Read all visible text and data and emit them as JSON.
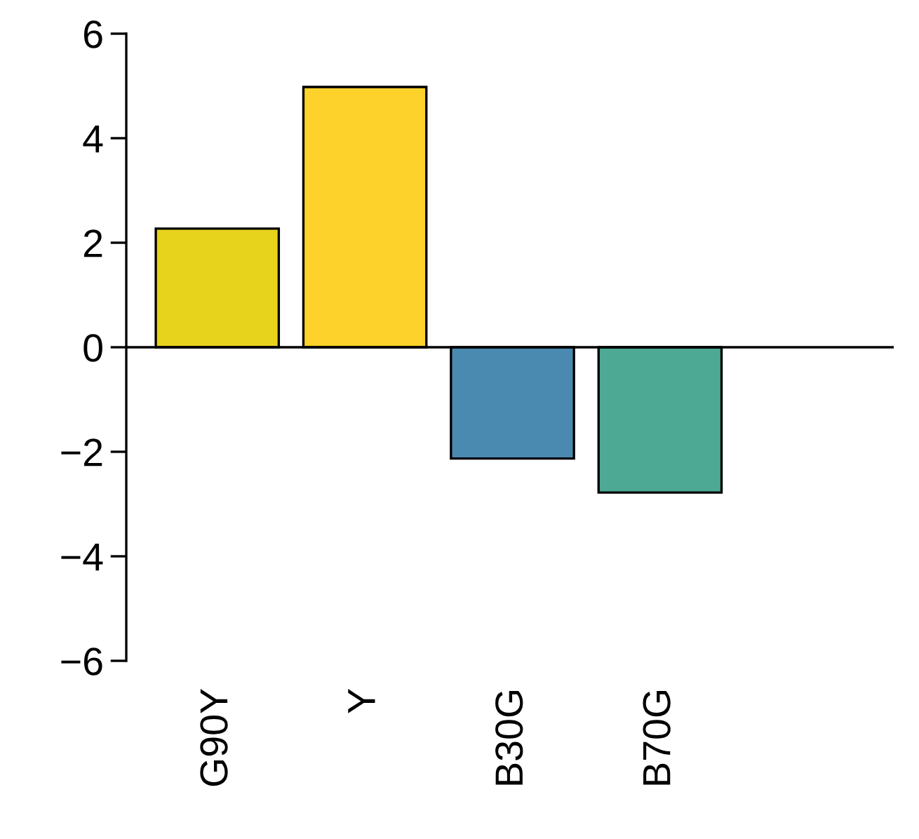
{
  "chart_data": {
    "type": "bar",
    "categories": [
      "G90Y",
      "Y",
      "B30G",
      "B70G",
      null
    ],
    "values": [
      2.27,
      4.98,
      -2.13,
      -2.78,
      null
    ],
    "colors": [
      "#e8d31c",
      "#fdd22a",
      "#4a8ab1",
      "#4da894",
      "#888888"
    ],
    "ylim": [
      -6,
      6
    ],
    "yticks": [
      -6,
      -4,
      -2,
      0,
      2,
      4,
      6
    ],
    "grid": false,
    "legend": false,
    "ref_lines": [
      {
        "axis": "y",
        "value": 0,
        "color": "#000000"
      }
    ]
  }
}
